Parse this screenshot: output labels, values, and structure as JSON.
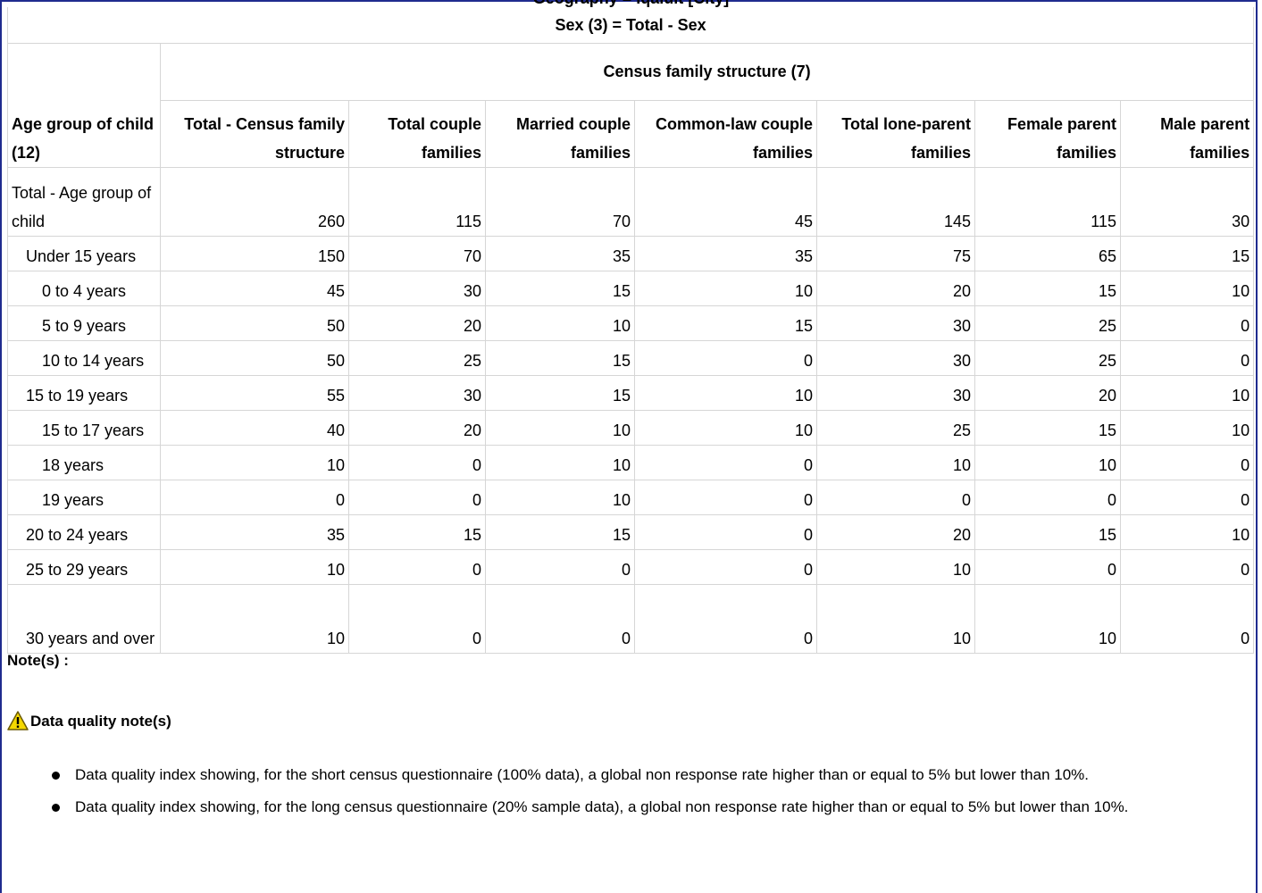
{
  "geography_header": "Geography = Iqaluit [City]",
  "table": {
    "sex_filter": "Sex (3) = Total - Sex",
    "group_header": "Census family structure (7)",
    "stub_header": "Age group of child (12)",
    "columns": [
      "Total - Census family structure",
      "Total couple families",
      "Married couple families",
      "Common-law couple families",
      "Total lone-parent families",
      "Female parent families",
      "Male parent families"
    ],
    "rows": [
      {
        "label": "Total - Age group of child",
        "level": 0,
        "values": [
          "260",
          "115",
          "70",
          "45",
          "145",
          "115",
          "30"
        ]
      },
      {
        "label": "Under 15 years",
        "level": 1,
        "values": [
          "150",
          "70",
          "35",
          "35",
          "75",
          "65",
          "15"
        ]
      },
      {
        "label": "0 to 4 years",
        "level": 2,
        "values": [
          "45",
          "30",
          "15",
          "10",
          "20",
          "15",
          "10"
        ]
      },
      {
        "label": "5 to 9 years",
        "level": 2,
        "values": [
          "50",
          "20",
          "10",
          "15",
          "30",
          "25",
          "0"
        ]
      },
      {
        "label": "10 to 14 years",
        "level": 2,
        "values": [
          "50",
          "25",
          "15",
          "0",
          "30",
          "25",
          "0"
        ]
      },
      {
        "label": "15 to 19 years",
        "level": 1,
        "values": [
          "55",
          "30",
          "15",
          "10",
          "30",
          "20",
          "10"
        ]
      },
      {
        "label": "15 to 17 years",
        "level": 2,
        "values": [
          "40",
          "20",
          "10",
          "10",
          "25",
          "15",
          "10"
        ]
      },
      {
        "label": "18 years",
        "level": 2,
        "values": [
          "10",
          "0",
          "10",
          "0",
          "10",
          "10",
          "0"
        ]
      },
      {
        "label": "19 years",
        "level": 2,
        "values": [
          "0",
          "0",
          "10",
          "0",
          "0",
          "0",
          "0"
        ]
      },
      {
        "label": "20 to 24 years",
        "level": 1,
        "values": [
          "35",
          "15",
          "15",
          "0",
          "20",
          "15",
          "10"
        ]
      },
      {
        "label": "25 to 29 years",
        "level": 1,
        "values": [
          "10",
          "0",
          "0",
          "0",
          "10",
          "0",
          "0"
        ]
      },
      {
        "label": "30 years and over",
        "level": 1,
        "values": [
          "10",
          "0",
          "0",
          "0",
          "10",
          "10",
          "0"
        ]
      }
    ]
  },
  "notes": {
    "label": "Note(s) :",
    "data_quality_heading": "Data quality note(s)",
    "icon": "warning-icon",
    "items": [
      "Data quality index showing, for the short census questionnaire (100% data), a global non response rate higher than or equal to 5% but lower than 10%.",
      "Data quality index showing, for the long census questionnaire (20% sample data), a global non response rate higher than or equal to 5% but lower than 10%."
    ]
  },
  "colors": {
    "frame_border": "#1f2b8f",
    "cell_border": "#d6d6d6",
    "warning_fill": "#f5d800"
  }
}
